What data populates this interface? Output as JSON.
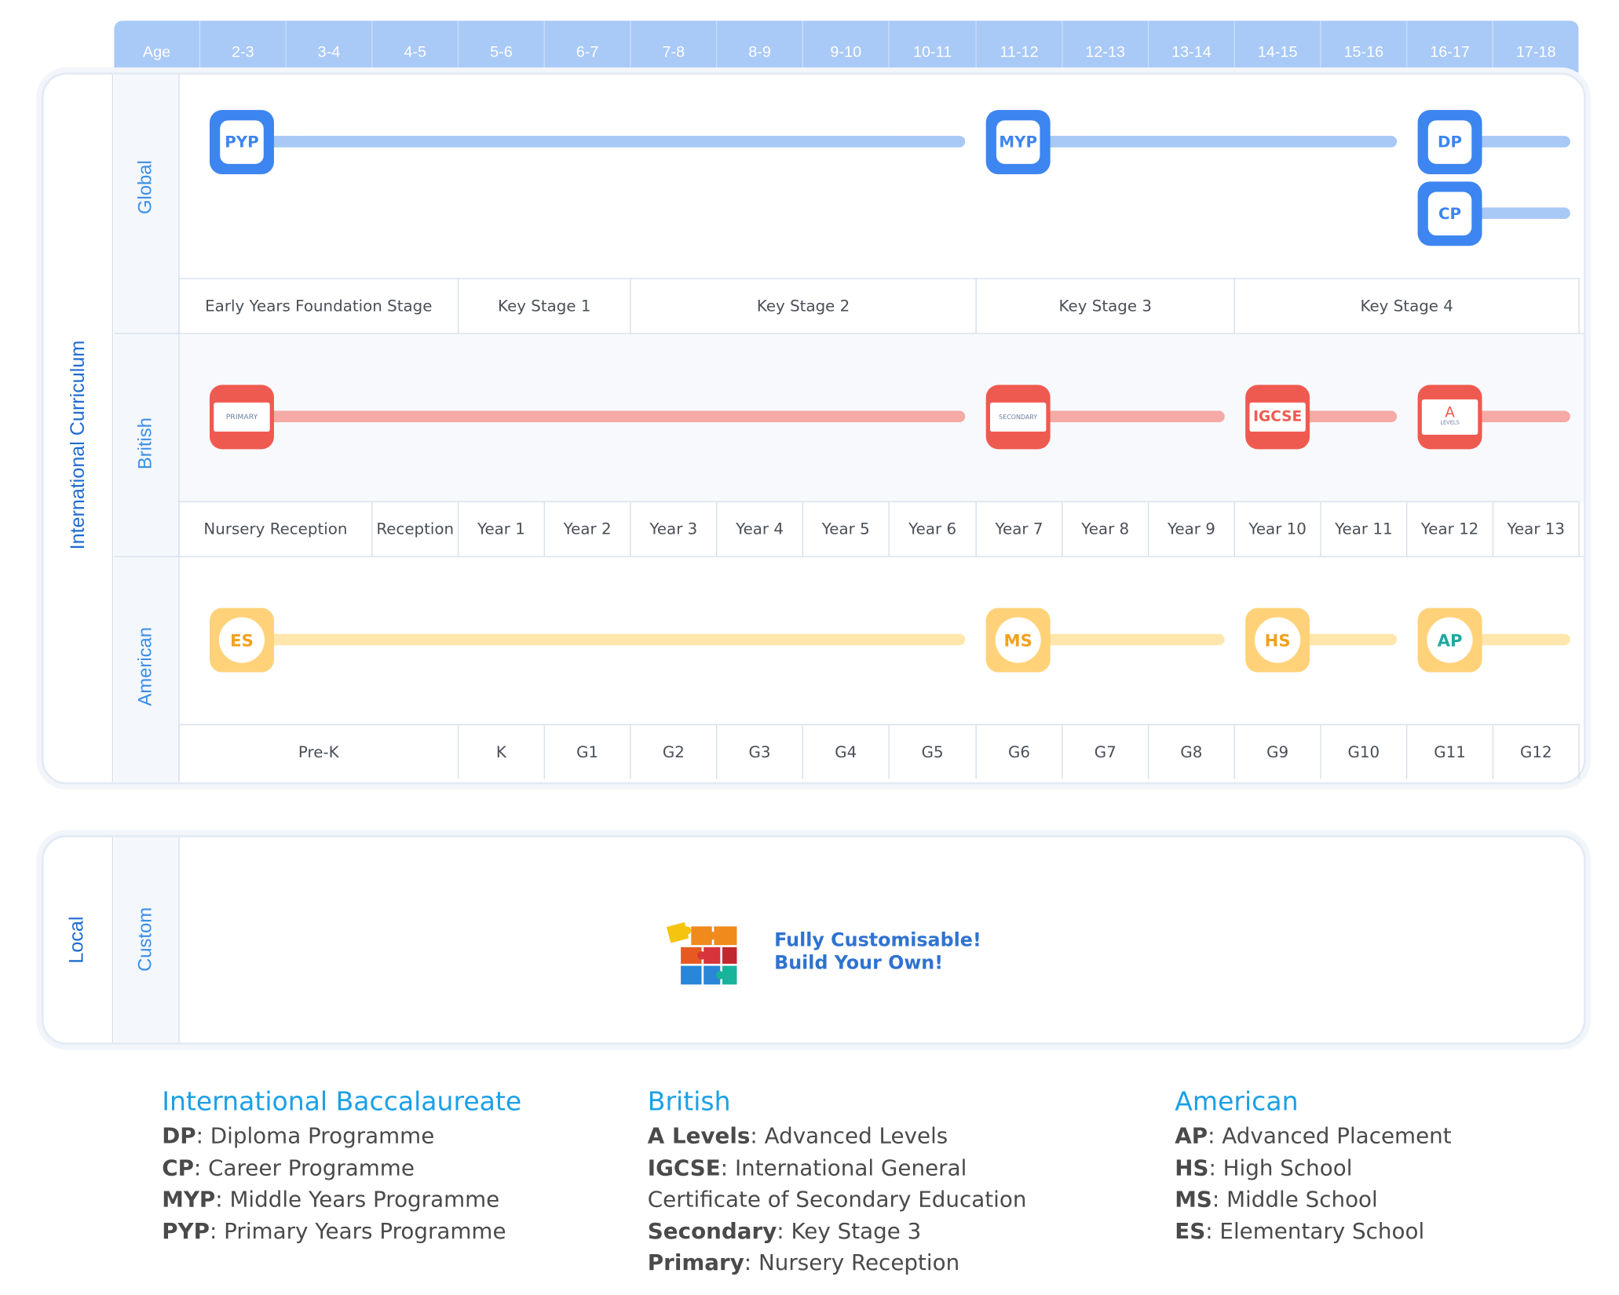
{
  "colors": {
    "ib_blue": "#3d85f0",
    "ib_bar": "#a8c8f5",
    "british_red": "#ef5a50",
    "british_bar": "#f5aaa5",
    "american_yellow": "#ffd27a",
    "american_bar": "#ffe6ad",
    "header_blue": "#a9c9f7",
    "label_blue": "#3a8ee6",
    "legend_title": "#1aa0e6"
  },
  "age_header": {
    "label": "Age",
    "ranges": [
      "2-3",
      "3-4",
      "4-5",
      "5-6",
      "6-7",
      "7-8",
      "8-9",
      "9-10",
      "10-11",
      "11-12",
      "12-13",
      "13-14",
      "14-15",
      "15-16",
      "16-17",
      "17-18"
    ]
  },
  "international": {
    "title": "International Curriculum",
    "global": {
      "label": "Global",
      "programmes": [
        "PYP",
        "MYP",
        "DP",
        "CP"
      ],
      "stages": [
        "Early Years Foundation Stage",
        "Key Stage 1",
        "Key Stage 2",
        "Key Stage 3",
        "Key Stage 4"
      ]
    },
    "british": {
      "label": "British",
      "programmes": [
        "PRIMARY",
        "SECONDARY",
        "IGCSE",
        "A",
        "LEVELS"
      ],
      "years": [
        "Nursery Reception",
        "Reception",
        "Year 1",
        "Year 2",
        "Year 3",
        "Year 4",
        "Year 5",
        "Year 6",
        "Year 7",
        "Year 8",
        "Year 9",
        "Year 10",
        "Year 11",
        "Year 12",
        "Year 13"
      ]
    },
    "american": {
      "label": "American",
      "programmes": [
        "ES",
        "MS",
        "HS",
        "AP"
      ],
      "grades": [
        "Pre-K",
        "K",
        "G1",
        "G2",
        "G3",
        "G4",
        "G5",
        "G6",
        "G7",
        "G8",
        "G9",
        "G10",
        "G11",
        "G12"
      ]
    }
  },
  "local": {
    "title": "Local",
    "custom_label": "Custom",
    "message_line1": "Fully Customisable!",
    "message_line2": "Build Your Own!",
    "icon": "puzzle-icon"
  },
  "legend": {
    "ib": {
      "title": "International Baccalaureate",
      "items": [
        {
          "abbr": "DP",
          "desc": ": Diploma Programme"
        },
        {
          "abbr": "CP",
          "desc": ": Career Programme"
        },
        {
          "abbr": "MYP",
          "desc": ": Middle Years Programme"
        },
        {
          "abbr": "PYP",
          "desc": ": Primary Years Programme"
        }
      ]
    },
    "british": {
      "title": "British",
      "items": [
        {
          "abbr": "A Levels",
          "desc": ": Advanced Levels"
        },
        {
          "abbr": "IGCSE",
          "desc": ": International General"
        },
        {
          "abbr": "",
          "desc": "Certificate of Secondary Education"
        },
        {
          "abbr": "Secondary",
          "desc": ": Key Stage 3"
        },
        {
          "abbr": "Primary",
          "desc": ": Nursery Reception"
        }
      ]
    },
    "american": {
      "title": "American",
      "items": [
        {
          "abbr": "AP",
          "desc": ": Advanced Placement"
        },
        {
          "abbr": "HS",
          "desc": ": High School"
        },
        {
          "abbr": "MS",
          "desc": ": Middle School"
        },
        {
          "abbr": "ES",
          "desc": ": Elementary School"
        }
      ]
    }
  }
}
